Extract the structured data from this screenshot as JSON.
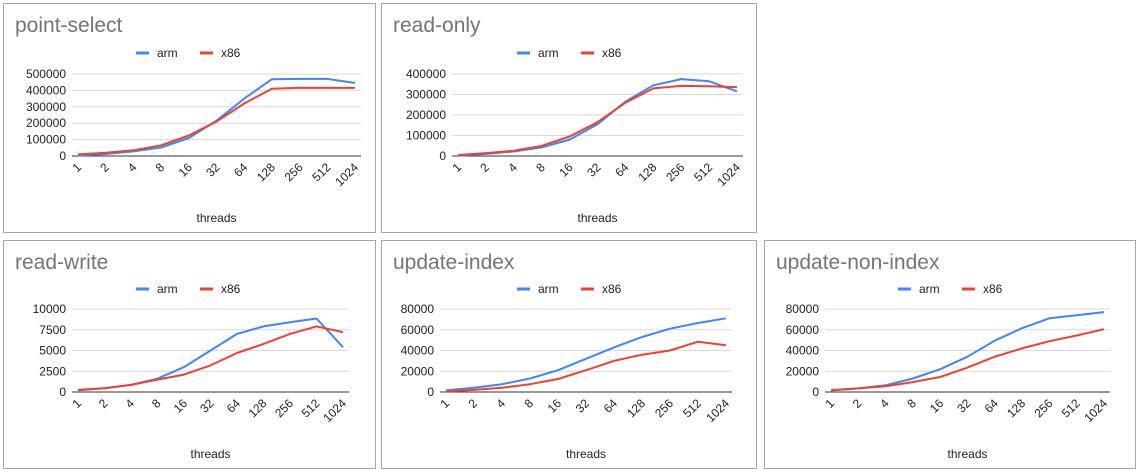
{
  "chart_data": [
    {
      "type": "line",
      "title": "point-select",
      "xlabel": "threads",
      "ylabel": "",
      "categories": [
        "1",
        "2",
        "4",
        "8",
        "16",
        "32",
        "64",
        "128",
        "256",
        "512",
        "1024"
      ],
      "yticks": [
        "0",
        "100000",
        "200000",
        "300000",
        "400000",
        "500000"
      ],
      "ylim": [
        0,
        500000
      ],
      "legend": "top",
      "grid": true,
      "series": [
        {
          "name": "arm",
          "color": "#4285f4",
          "values": [
            3000,
            12000,
            28000,
            52000,
            110000,
            215000,
            350000,
            468000,
            470000,
            470000,
            445000
          ]
        },
        {
          "name": "x86",
          "color": "#ea4335",
          "values": [
            10000,
            20000,
            35000,
            65000,
            125000,
            210000,
            320000,
            410000,
            416000,
            415000,
            415000
          ]
        }
      ]
    },
    {
      "type": "line",
      "title": "read-only",
      "xlabel": "threads",
      "ylabel": "",
      "categories": [
        "1",
        "2",
        "4",
        "8",
        "16",
        "32",
        "64",
        "128",
        "256",
        "512",
        "1024"
      ],
      "yticks": [
        "0",
        "100000",
        "200000",
        "300000",
        "400000"
      ],
      "ylim": [
        0,
        400000
      ],
      "legend": "top",
      "grid": true,
      "series": [
        {
          "name": "arm",
          "color": "#4285f4",
          "values": [
            2000,
            10000,
            22000,
            42000,
            80000,
            155000,
            265000,
            345000,
            375000,
            365000,
            315000
          ]
        },
        {
          "name": "x86",
          "color": "#ea4335",
          "values": [
            5000,
            14000,
            26000,
            50000,
            95000,
            165000,
            260000,
            330000,
            342000,
            340000,
            335000
          ]
        }
      ]
    },
    {
      "type": "line",
      "title": "read-write",
      "xlabel": "threads",
      "ylabel": "",
      "categories": [
        "1",
        "2",
        "4",
        "8",
        "16",
        "32",
        "64",
        "128",
        "256",
        "512",
        "1024"
      ],
      "yticks": [
        "0",
        "2500",
        "5000",
        "7500",
        "10000"
      ],
      "ylim": [
        0,
        10000
      ],
      "legend": "top",
      "grid": true,
      "series": [
        {
          "name": "arm",
          "color": "#4285f4",
          "values": [
            200,
            450,
            850,
            1600,
            3000,
            5000,
            7000,
            7900,
            8400,
            8850,
            5400
          ]
        },
        {
          "name": "x86",
          "color": "#ea4335",
          "values": [
            250,
            450,
            850,
            1500,
            2100,
            3200,
            4700,
            5800,
            7000,
            7900,
            7200
          ]
        }
      ]
    },
    {
      "type": "line",
      "title": "update-index",
      "xlabel": "threads",
      "ylabel": "",
      "categories": [
        "1",
        "2",
        "4",
        "8",
        "16",
        "32",
        "64",
        "128",
        "256",
        "512",
        "1024"
      ],
      "yticks": [
        "0",
        "20000",
        "40000",
        "60000",
        "80000"
      ],
      "ylim": [
        0,
        80000
      ],
      "legend": "top",
      "grid": true,
      "series": [
        {
          "name": "arm",
          "color": "#4285f4",
          "values": [
            1500,
            4000,
            7500,
            13000,
            21000,
            32000,
            43000,
            53000,
            61000,
            66500,
            71000
          ]
        },
        {
          "name": "x86",
          "color": "#ea4335",
          "values": [
            600,
            2000,
            4000,
            7500,
            12500,
            21000,
            30000,
            36000,
            40000,
            48500,
            45000
          ]
        }
      ]
    },
    {
      "type": "line",
      "title": "update-non-index",
      "xlabel": "threads",
      "ylabel": "",
      "categories": [
        "1",
        "2",
        "4",
        "8",
        "16",
        "32",
        "64",
        "128",
        "256",
        "512",
        "1024"
      ],
      "yticks": [
        "0",
        "20000",
        "40000",
        "60000",
        "80000"
      ],
      "ylim": [
        0,
        80000
      ],
      "legend": "top",
      "grid": true,
      "series": [
        {
          "name": "arm",
          "color": "#4285f4",
          "values": [
            1500,
            3500,
            6500,
            13000,
            22000,
            34000,
            49500,
            61500,
            71000,
            74000,
            77000
          ]
        },
        {
          "name": "x86",
          "color": "#ea4335",
          "values": [
            1800,
            3500,
            5500,
            9500,
            14500,
            23500,
            34000,
            42000,
            49000,
            54500,
            60500
          ]
        }
      ]
    }
  ]
}
